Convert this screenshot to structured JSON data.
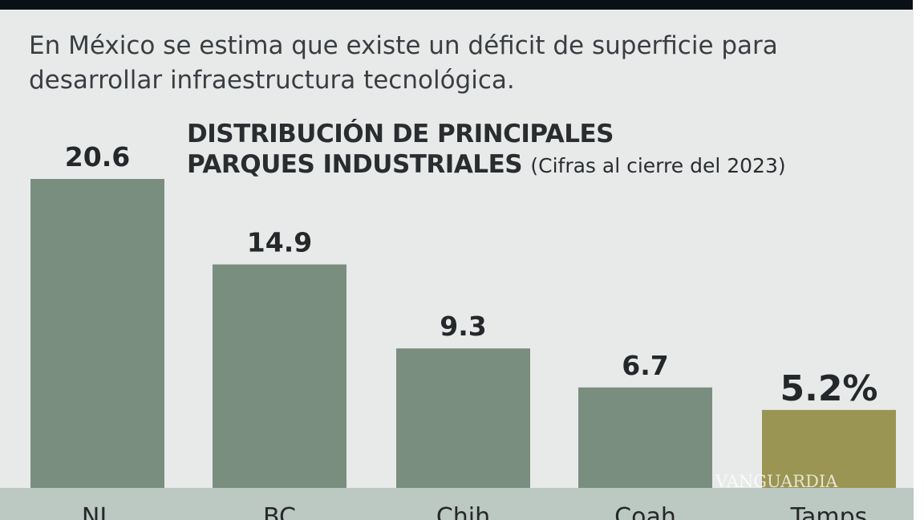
{
  "intro": "En México se estima que existe un déficit de superficie para desarrollar infraestructura tecnológica.",
  "watermark": "VANGUARDIA",
  "chart_data": {
    "type": "bar",
    "title_line1": "DISTRIBUCIÓN DE PRINCIPALES",
    "title_line2": "PARQUES INDUSTRIALES",
    "subtitle": "(Cifras al cierre del 2023)",
    "categories": [
      "NL",
      "BC",
      "Chih",
      "Coah",
      "Tamps"
    ],
    "values": [
      20.6,
      14.9,
      9.3,
      6.7,
      5.2
    ],
    "value_labels": [
      "20.6",
      "14.9",
      "9.3",
      "6.7",
      "5.2%"
    ],
    "highlight_index": 4,
    "colors": {
      "bar": "#7a8e80",
      "highlight": "#9a9552"
    },
    "ylim": [
      0,
      20.6
    ],
    "grid": false
  }
}
